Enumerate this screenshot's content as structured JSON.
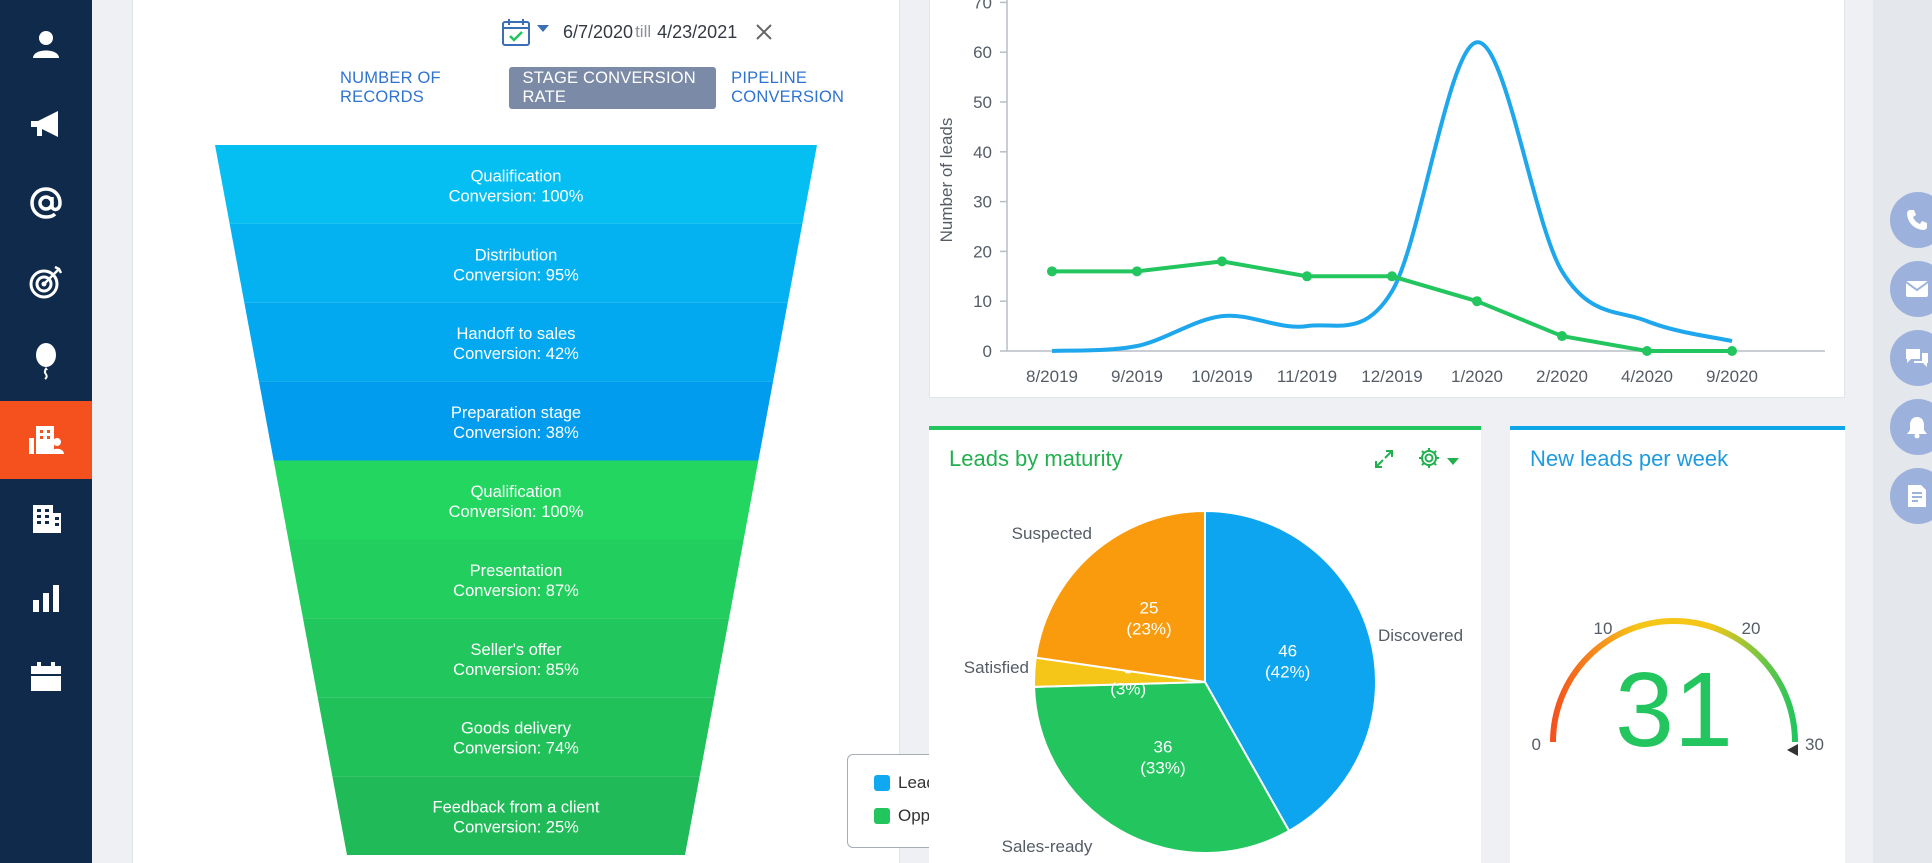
{
  "sidebar": {
    "items": [
      {
        "name": "contacts",
        "icon": "person-icon"
      },
      {
        "name": "campaigns",
        "icon": "megaphone-icon"
      },
      {
        "name": "email",
        "icon": "at-sign-icon"
      },
      {
        "name": "leads",
        "icon": "target-icon"
      },
      {
        "name": "events",
        "icon": "balloon-icon"
      },
      {
        "name": "accounts",
        "icon": "building-contacts-icon",
        "active": true
      },
      {
        "name": "companies",
        "icon": "building-icon"
      },
      {
        "name": "analytics",
        "icon": "bar-chart-icon"
      },
      {
        "name": "calendar",
        "icon": "calendar-icon"
      }
    ]
  },
  "date_filter": {
    "start": "6/7/2020",
    "separator": "till",
    "end": "4/23/2021"
  },
  "tabs": [
    {
      "label": "NUMBER OF RECORDS",
      "active": false
    },
    {
      "label": "STAGE CONVERSION RATE",
      "active": true
    },
    {
      "label": "PIPELINE CONVERSION",
      "active": false
    }
  ],
  "funnel": {
    "stages": [
      {
        "name": "Qualification",
        "conversion": "Conversion: 100%",
        "type": "Lead",
        "color": "#06bff2"
      },
      {
        "name": "Distribution",
        "conversion": "Conversion: 95%",
        "type": "Lead",
        "color": "#04b2f2"
      },
      {
        "name": "Handoff to sales",
        "conversion": "Conversion: 42%",
        "type": "Lead",
        "color": "#02a8f0"
      },
      {
        "name": "Preparation stage",
        "conversion": "Conversion: 38%",
        "type": "Lead",
        "color": "#029cef"
      },
      {
        "name": "Qualification",
        "conversion": "Conversion: 100%",
        "type": "Opportunity",
        "color": "#22d660"
      },
      {
        "name": "Presentation",
        "conversion": "Conversion: 87%",
        "type": "Opportunity",
        "color": "#22ce5e"
      },
      {
        "name": "Seller's offer",
        "conversion": "Conversion: 85%",
        "type": "Opportunity",
        "color": "#21c75c"
      },
      {
        "name": "Goods delivery",
        "conversion": "Conversion: 74%",
        "type": "Opportunity",
        "color": "#21c15a"
      },
      {
        "name": "Feedback from a client",
        "conversion": "Conversion: 25%",
        "type": "Opportunity",
        "color": "#20bb58"
      }
    ],
    "legend": [
      {
        "label": "Lead",
        "color": "#10a8f0"
      },
      {
        "label": "Opportunity",
        "color": "#22c55e"
      }
    ]
  },
  "chart_data": [
    {
      "type": "line",
      "ylabel": "Number of leads",
      "categories": [
        "8/2019",
        "9/2019",
        "10/2019",
        "11/2019",
        "12/2019",
        "1/2020",
        "2/2020",
        "4/2020",
        "9/2020"
      ],
      "ylim": [
        0,
        70
      ],
      "yticks": [
        0,
        10,
        20,
        30,
        40,
        50,
        60,
        70
      ],
      "series": [
        {
          "color": "#1ea7ec",
          "smooth": true,
          "markers": false,
          "values": [
            0,
            1,
            7,
            5,
            12,
            62,
            16,
            6,
            2
          ]
        },
        {
          "color": "#22c55e",
          "smooth": false,
          "markers": true,
          "values": [
            16,
            16,
            18,
            15,
            15,
            10,
            3,
            0,
            0
          ]
        }
      ]
    },
    {
      "type": "pie",
      "title": "Leads by maturity",
      "slices": [
        {
          "label": "Discovered",
          "value": 46,
          "percent": "(42%)",
          "color": "#0ea5f0"
        },
        {
          "label": "Sales-ready",
          "value": 36,
          "percent": "(33%)",
          "color": "#22c55e"
        },
        {
          "label": "Satisfied",
          "value": 3,
          "percent": "(3%)",
          "color": "#f5c518"
        },
        {
          "label": "Suspected",
          "value": 25,
          "percent": "(23%)",
          "color": "#f99b0c"
        }
      ]
    }
  ],
  "gauge": {
    "title": "New leads per week",
    "value": 31,
    "min": 0,
    "max": 30,
    "ticks": [
      0,
      10,
      20,
      30
    ],
    "value_color": "#22c55e"
  },
  "pie_widget": {
    "title": "Leads by maturity"
  },
  "right_actions": [
    {
      "name": "phone",
      "icon": "phone-icon"
    },
    {
      "name": "email",
      "icon": "envelope-icon"
    },
    {
      "name": "chat",
      "icon": "chat-icon"
    },
    {
      "name": "notifications",
      "icon": "bell-icon"
    },
    {
      "name": "documents",
      "icon": "document-icon"
    }
  ]
}
